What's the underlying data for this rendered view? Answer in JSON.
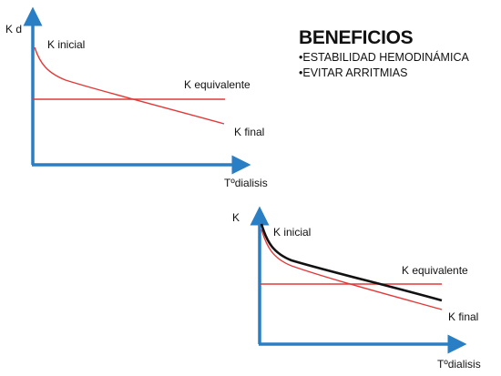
{
  "colors": {
    "axis": "#2a7fc4",
    "curve_red": "#e03a3a",
    "curve_black": "#111111"
  },
  "benefits": {
    "title": "BENEFICIOS",
    "items": [
      "•ESTABILIDAD HEMODINÁMICA",
      "•EVITAR ARRITMIAS"
    ]
  },
  "chart_top": {
    "y_label": "K d",
    "x_label": "Tºdialisis",
    "labels": {
      "initial": "K inicial",
      "equivalent": "K equivalente",
      "final": "K final"
    }
  },
  "chart_bottom": {
    "y_label": "K",
    "x_label": "Tºdialisis",
    "labels": {
      "initial": "K inicial",
      "equivalent": "K equivalente",
      "final": "K final"
    }
  }
}
